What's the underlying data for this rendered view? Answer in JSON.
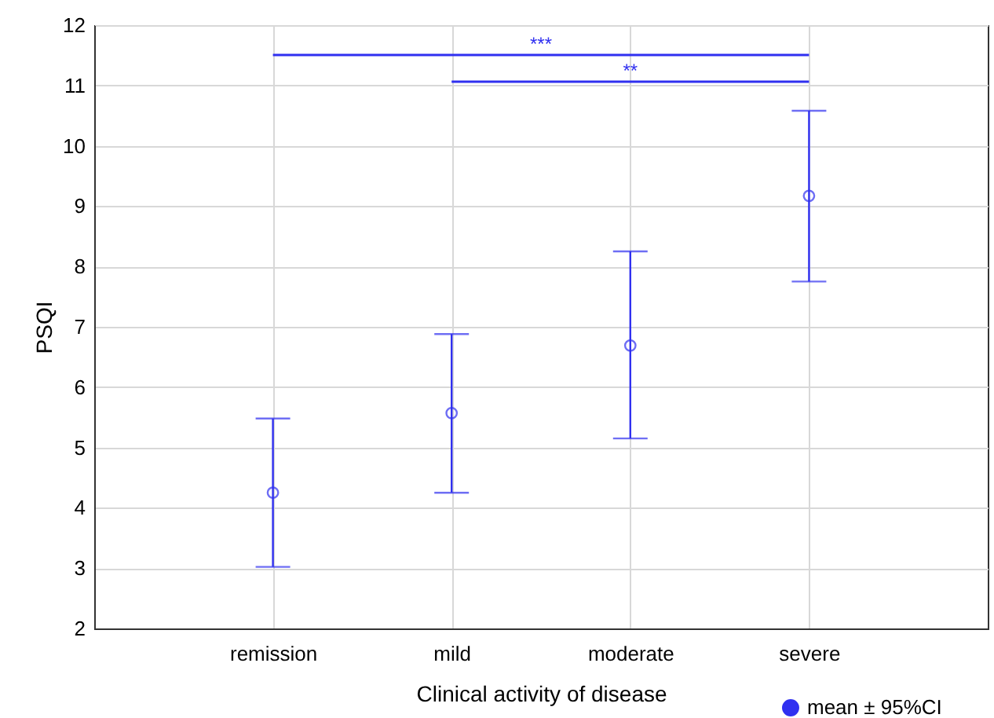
{
  "chart_data": {
    "type": "scatter",
    "xlabel": "Clinical activity of disease",
    "ylabel": "PSQI",
    "categories": [
      "remission",
      "mild",
      "moderate",
      "severe"
    ],
    "series": [
      {
        "name": "mean ± 95%CI",
        "color": "#3030f0",
        "values": [
          4.25,
          5.57,
          6.69,
          9.17
        ],
        "errors": [
          [
            3.02,
            5.48
          ],
          [
            4.25,
            6.88
          ],
          [
            5.15,
            8.25
          ],
          [
            7.75,
            10.58
          ]
        ]
      }
    ],
    "ylim": [
      2,
      12
    ],
    "yticks": [
      2,
      3,
      4,
      5,
      6,
      7,
      8,
      9,
      10,
      11,
      12
    ],
    "annotations": [
      "***",
      "**"
    ],
    "grid": true,
    "legend": "bottom right",
    "marker": "circle"
  }
}
